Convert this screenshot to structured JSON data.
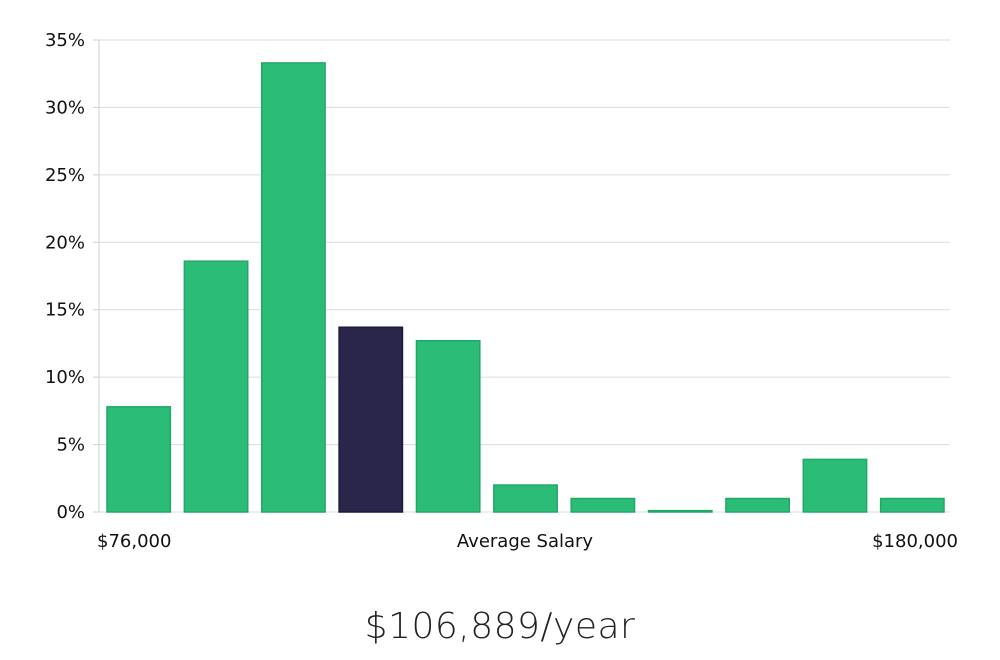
{
  "chart_data": {
    "type": "bar",
    "categories": [
      "1",
      "2",
      "3",
      "4",
      "5",
      "6",
      "7",
      "8",
      "9",
      "10",
      "11"
    ],
    "values": [
      7.8,
      18.6,
      33.3,
      13.7,
      12.7,
      2.0,
      1.0,
      0.1,
      1.0,
      3.9,
      1.0
    ],
    "highlight_index": 3,
    "ylim": [
      0,
      35
    ],
    "yticks": [
      0,
      5,
      10,
      15,
      20,
      25,
      30,
      35
    ],
    "ytick_labels": [
      "0%",
      "5%",
      "10%",
      "15%",
      "20%",
      "25%",
      "30%",
      "35%"
    ],
    "x_labels": {
      "left": "$76,000",
      "center": "Average Salary",
      "right": "$180,000"
    },
    "grid": true,
    "colors": {
      "bar": "#2bbd77",
      "bar_stroke": "#22a866",
      "highlight": "#29264a",
      "highlight_stroke": "#1c1a38"
    }
  },
  "caption": "$106,889/year"
}
